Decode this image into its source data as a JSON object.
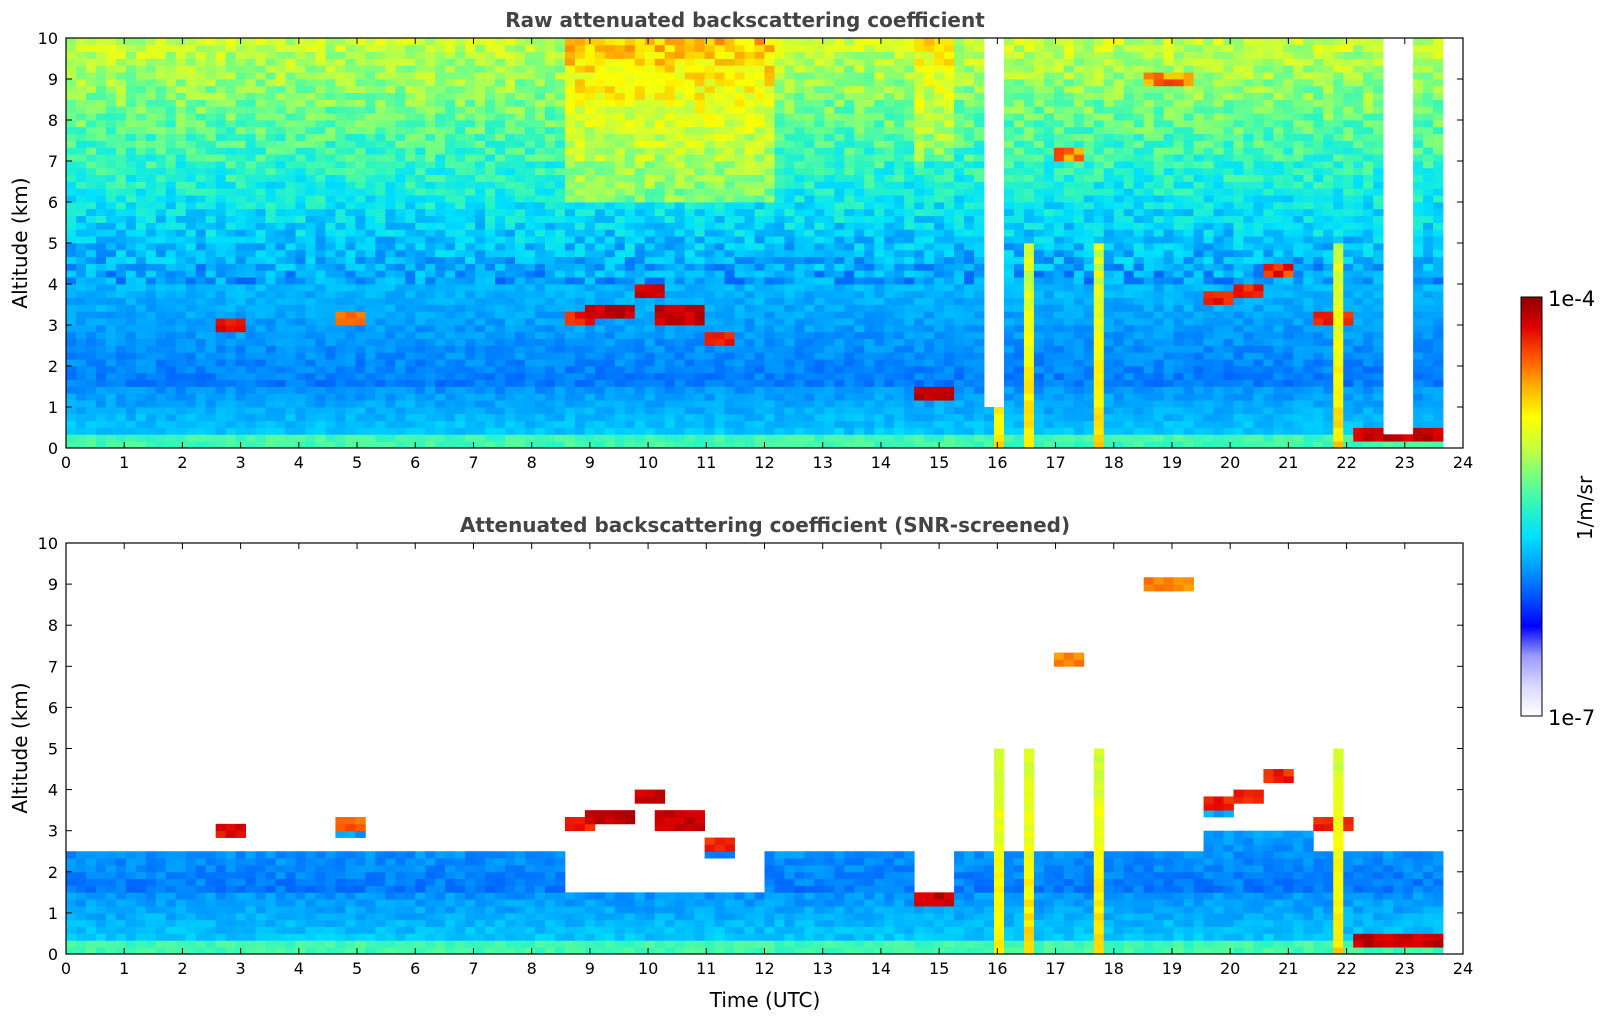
{
  "colors": {
    "title": "#444444",
    "axis": "#000000",
    "colormap": [
      "#ffffff",
      "#d8d8ff",
      "#9b9bff",
      "#0000ff",
      "#0055ff",
      "#00a0ff",
      "#00e0ff",
      "#2cf5c0",
      "#78ff80",
      "#c8ff3c",
      "#ffff00",
      "#ffb000",
      "#ff5500",
      "#e00000",
      "#8b0000"
    ]
  },
  "chart_data": [
    {
      "type": "heatmap",
      "title": "Raw attenuated backscattering coefficient",
      "xlabel": "",
      "ylabel": "Altitude (km)",
      "xlim": [
        0,
        24
      ],
      "ylim": [
        0,
        10
      ],
      "xticks": [
        "0",
        "1",
        "2",
        "3",
        "4",
        "5",
        "6",
        "7",
        "8",
        "9",
        "10",
        "11",
        "12",
        "13",
        "14",
        "15",
        "16",
        "17",
        "18",
        "19",
        "20",
        "21",
        "22",
        "23",
        "24"
      ],
      "yticks": [
        "0",
        "1",
        "2",
        "3",
        "4",
        "5",
        "6",
        "7",
        "8",
        "9",
        "10"
      ],
      "screened": false,
      "features": [
        {
          "t0": 2.5,
          "t1": 3.1,
          "alt": 3.0,
          "level": 0.92
        },
        {
          "t0": 4.7,
          "t1": 5.1,
          "alt": 3.1,
          "level": 0.85
        },
        {
          "t0": 8.5,
          "t1": 9.0,
          "alt": 3.2,
          "level": 0.9
        },
        {
          "t0": 9.0,
          "t1": 9.7,
          "alt": 3.35,
          "level": 0.95
        },
        {
          "t0": 9.7,
          "t1": 10.2,
          "alt": 3.85,
          "level": 0.95
        },
        {
          "t0": 10.1,
          "t1": 11.0,
          "alt": 3.25,
          "level": 0.95
        },
        {
          "t0": 11.0,
          "t1": 11.4,
          "alt": 2.6,
          "level": 0.9
        },
        {
          "t0": 14.5,
          "t1": 15.2,
          "alt": 1.3,
          "level": 0.95
        },
        {
          "t0": 16.9,
          "t1": 17.4,
          "alt": 7.2,
          "level": 0.82
        },
        {
          "t0": 18.5,
          "t1": 19.4,
          "alt": 9.0,
          "level": 0.82
        },
        {
          "t0": 19.6,
          "t1": 20.0,
          "alt": 3.6,
          "level": 0.9
        },
        {
          "t0": 20.0,
          "t1": 20.6,
          "alt": 3.8,
          "level": 0.9
        },
        {
          "t0": 20.6,
          "t1": 21.1,
          "alt": 4.3,
          "level": 0.9
        },
        {
          "t0": 21.4,
          "t1": 22.2,
          "alt": 3.2,
          "level": 0.9
        },
        {
          "t0": 22.2,
          "t1": 23.6,
          "alt": 0.3,
          "level": 0.95
        }
      ]
    },
    {
      "type": "heatmap",
      "title": "Attenuated backscattering coefficient (SNR-screened)",
      "xlabel": "Time (UTC)",
      "ylabel": "Altitude (km)",
      "xlim": [
        0,
        24
      ],
      "ylim": [
        0,
        10
      ],
      "xticks": [
        "0",
        "1",
        "2",
        "3",
        "4",
        "5",
        "6",
        "7",
        "8",
        "9",
        "10",
        "11",
        "12",
        "13",
        "14",
        "15",
        "16",
        "17",
        "18",
        "19",
        "20",
        "21",
        "22",
        "23",
        "24"
      ],
      "yticks": [
        "0",
        "1",
        "2",
        "3",
        "4",
        "5",
        "6",
        "7",
        "8",
        "9",
        "10"
      ],
      "screened": true,
      "features": [
        {
          "t0": 2.5,
          "t1": 3.1,
          "alt": 3.0,
          "level": 0.92
        },
        {
          "t0": 4.7,
          "t1": 5.1,
          "alt": 3.1,
          "level": 0.85
        },
        {
          "t0": 8.5,
          "t1": 9.0,
          "alt": 3.2,
          "level": 0.9
        },
        {
          "t0": 9.0,
          "t1": 9.7,
          "alt": 3.35,
          "level": 0.95
        },
        {
          "t0": 9.7,
          "t1": 10.2,
          "alt": 3.85,
          "level": 0.95
        },
        {
          "t0": 10.1,
          "t1": 11.0,
          "alt": 3.25,
          "level": 0.95
        },
        {
          "t0": 11.0,
          "t1": 11.4,
          "alt": 2.6,
          "level": 0.9
        },
        {
          "t0": 14.5,
          "t1": 15.2,
          "alt": 1.3,
          "level": 0.95
        },
        {
          "t0": 16.9,
          "t1": 17.4,
          "alt": 7.2,
          "level": 0.82
        },
        {
          "t0": 18.5,
          "t1": 19.4,
          "alt": 9.0,
          "level": 0.82
        },
        {
          "t0": 19.6,
          "t1": 20.0,
          "alt": 3.6,
          "level": 0.9
        },
        {
          "t0": 20.0,
          "t1": 20.6,
          "alt": 3.8,
          "level": 0.9
        },
        {
          "t0": 20.6,
          "t1": 21.1,
          "alt": 4.3,
          "level": 0.9
        },
        {
          "t0": 21.4,
          "t1": 22.2,
          "alt": 3.2,
          "level": 0.9
        },
        {
          "t0": 22.2,
          "t1": 23.6,
          "alt": 0.3,
          "level": 0.95
        }
      ]
    }
  ],
  "colorbar": {
    "max_label": "1e-4",
    "min_label": "1e-7",
    "unit_label": "1/m/sr",
    "scale": "log"
  }
}
